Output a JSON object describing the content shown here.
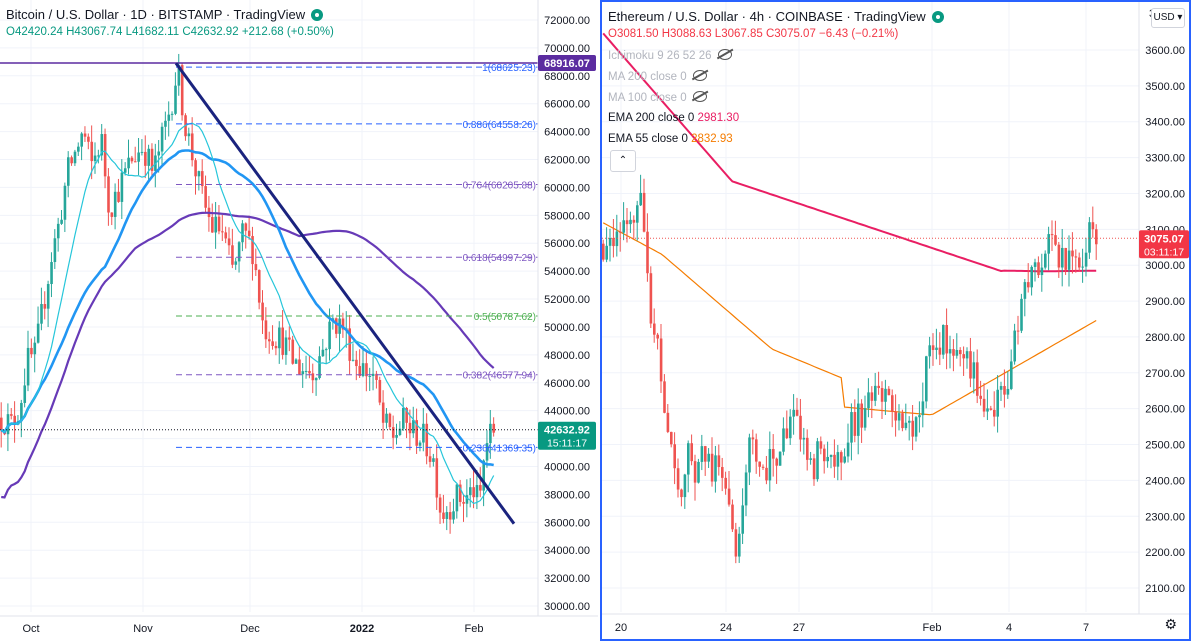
{
  "left": {
    "title": "Bitcoin / U.S. Dollar · 1D · BITSTAMP · TradingView",
    "ohlc": {
      "o": "O42420.24",
      "h": "H43067.74",
      "l": "L41682.11",
      "c": "C42632.92",
      "chg": "+212.68 (+0.50%)"
    },
    "price_axis": [
      "72000.00",
      "70000.00",
      "68000.00",
      "66000.00",
      "64000.00",
      "62000.00",
      "60000.00",
      "58000.00",
      "56000.00",
      "54000.00",
      "52000.00",
      "50000.00",
      "48000.00",
      "46000.00",
      "44000.00",
      "42000.00",
      "40000.00",
      "38000.00",
      "36000.00",
      "34000.00",
      "32000.00",
      "30000.00"
    ],
    "time_axis": [
      "Oct",
      "Nov",
      "Dec",
      "2022",
      "Feb"
    ],
    "last_price": "42632.92",
    "countdown": "15:11:17",
    "high_label": "68916.07",
    "fib_levels": [
      {
        "label": "1(68625.23)",
        "value": 68625.23,
        "color": "#2962ff"
      },
      {
        "label": "0.886(64558.26)",
        "value": 64558.26,
        "color": "#2962ff"
      },
      {
        "label": "0.764(60205.88)",
        "value": 60205.88,
        "color": "#7e57c2"
      },
      {
        "label": "0.618(54997.29)",
        "value": 54997.29,
        "color": "#7e57c2"
      },
      {
        "label": "0.5(50787.62)",
        "value": 50787.62,
        "color": "#4caf50"
      },
      {
        "label": "0.382(46577.94)",
        "value": 46577.94,
        "color": "#7e57c2"
      },
      {
        "label": "0.236(41369.35)",
        "value": 41369.35,
        "color": "#2962ff"
      }
    ]
  },
  "right": {
    "title": "Ethereum / U.S. Dollar · 4h · COINBASE · TradingView",
    "ohlc": {
      "o": "O3081.50",
      "h": "H3088.63",
      "l": "L3067.85",
      "c": "C3075.07",
      "chg": "−6.43 (−0.21%)"
    },
    "indicators": [
      {
        "label": "Ichimoku 9 26 52 26",
        "value": "",
        "enabled": false
      },
      {
        "label": "MA 200 close 0",
        "value": "",
        "enabled": false
      },
      {
        "label": "MA 100 close 0",
        "value": "",
        "enabled": false
      },
      {
        "label": "EMA 200 close 0",
        "value": "2981.30",
        "enabled": true,
        "color": "#e91e63"
      },
      {
        "label": "EMA 55 close 0",
        "value": "2832.93",
        "enabled": true,
        "color": "#f57c00"
      }
    ],
    "price_axis": [
      "3600.00",
      "3500.00",
      "3400.00",
      "3300.00",
      "3200.00",
      "3100.00",
      "3000.00",
      "2900.00",
      "2800.00",
      "2700.00",
      "2600.00",
      "2500.00",
      "2400.00",
      "2300.00",
      "2200.00",
      "2100.00"
    ],
    "time_axis": [
      "20",
      "24",
      "27",
      "Feb",
      "4",
      "7"
    ],
    "last_price": "3075.07",
    "countdown": "03:11:17",
    "currency": "USD",
    "axis_top_partial": "3"
  },
  "chart_data": [
    {
      "type": "candlestick",
      "title": "Bitcoin / U.S. Dollar · 1D · BITSTAMP",
      "ylim": [
        30000,
        72000
      ],
      "x_ticks": [
        "Oct",
        "Nov",
        "Dec",
        "2022",
        "Feb"
      ],
      "anchors": [
        [
          0,
          43500
        ],
        [
          10,
          43000
        ],
        [
          18,
          44200
        ],
        [
          26,
          47500
        ],
        [
          34,
          48000
        ],
        [
          42,
          51500
        ],
        [
          50,
          55000
        ],
        [
          58,
          57500
        ],
        [
          66,
          61000
        ],
        [
          74,
          62500
        ],
        [
          82,
          64000
        ],
        [
          90,
          61500
        ],
        [
          100,
          63500
        ],
        [
          108,
          58500
        ],
        [
          118,
          60000
        ],
        [
          130,
          62000
        ],
        [
          142,
          63000
        ],
        [
          152,
          61000
        ],
        [
          162,
          63800
        ],
        [
          170,
          66000
        ],
        [
          176,
          68600
        ],
        [
          184,
          64500
        ],
        [
          192,
          62000
        ],
        [
          200,
          59500
        ],
        [
          210,
          57200
        ],
        [
          220,
          57000
        ],
        [
          232,
          53800
        ],
        [
          242,
          56800
        ],
        [
          252,
          55500
        ],
        [
          262,
          50000
        ],
        [
          272,
          49500
        ],
        [
          282,
          49000
        ],
        [
          292,
          47500
        ],
        [
          302,
          47000
        ],
        [
          312,
          46800
        ],
        [
          322,
          48500
        ],
        [
          332,
          50500
        ],
        [
          342,
          50000
        ],
        [
          352,
          47800
        ],
        [
          362,
          47000
        ],
        [
          372,
          46500
        ],
        [
          382,
          43000
        ],
        [
          392,
          42200
        ],
        [
          402,
          43200
        ],
        [
          412,
          42500
        ],
        [
          422,
          42000
        ],
        [
          432,
          40500
        ],
        [
          440,
          36600
        ],
        [
          448,
          37200
        ],
        [
          456,
          37800
        ],
        [
          464,
          37600
        ],
        [
          472,
          38400
        ],
        [
          478,
          37200
        ],
        [
          484,
          41500
        ],
        [
          490,
          42400
        ],
        [
          494,
          42633
        ]
      ],
      "moving_averages": [
        {
          "name": "MA short",
          "color": "#26c6da"
        },
        {
          "name": "MA medium",
          "color": "#2196f3"
        },
        {
          "name": "MA long",
          "color": "#673ab7"
        }
      ],
      "trendline": {
        "from": [
          176,
          68900
        ],
        "to": [
          514,
          35900
        ],
        "color": "#1a237e"
      },
      "last": 42632.92
    },
    {
      "type": "candlestick",
      "title": "Ethereum / U.S. Dollar · 4h · COINBASE",
      "ylim": [
        2030,
        3650
      ],
      "x_ticks": [
        "20",
        "24",
        "27",
        "Feb",
        "4",
        "7"
      ],
      "anchors": [
        [
          0,
          3060
        ],
        [
          6,
          3070
        ],
        [
          14,
          3080
        ],
        [
          22,
          3090
        ],
        [
          30,
          3150
        ],
        [
          36,
          3200
        ],
        [
          42,
          3060
        ],
        [
          46,
          2850
        ],
        [
          52,
          2800
        ],
        [
          58,
          2700
        ],
        [
          64,
          2550
        ],
        [
          70,
          2420
        ],
        [
          76,
          2330
        ],
        [
          84,
          2480
        ],
        [
          92,
          2400
        ],
        [
          100,
          2500
        ],
        [
          108,
          2420
        ],
        [
          116,
          2470
        ],
        [
          124,
          2380
        ],
        [
          132,
          2200
        ],
        [
          138,
          2250
        ],
        [
          146,
          2500
        ],
        [
          154,
          2470
        ],
        [
          162,
          2440
        ],
        [
          172,
          2460
        ],
        [
          184,
          2520
        ],
        [
          192,
          2650
        ],
        [
          200,
          2480
        ],
        [
          208,
          2420
        ],
        [
          216,
          2490
        ],
        [
          224,
          2480
        ],
        [
          232,
          2440
        ],
        [
          240,
          2500
        ],
        [
          248,
          2560
        ],
        [
          256,
          2580
        ],
        [
          266,
          2610
        ],
        [
          278,
          2640
        ],
        [
          290,
          2580
        ],
        [
          302,
          2520
        ],
        [
          314,
          2570
        ],
        [
          322,
          2700
        ],
        [
          330,
          2760
        ],
        [
          340,
          2790
        ],
        [
          350,
          2770
        ],
        [
          360,
          2780
        ],
        [
          370,
          2690
        ],
        [
          378,
          2650
        ],
        [
          386,
          2610
        ],
        [
          394,
          2620
        ],
        [
          402,
          2640
        ],
        [
          412,
          2820
        ],
        [
          420,
          2900
        ],
        [
          428,
          2990
        ],
        [
          436,
          3020
        ],
        [
          444,
          3050
        ],
        [
          452,
          3040
        ],
        [
          460,
          3020
        ],
        [
          468,
          3030
        ],
        [
          476,
          3010
        ],
        [
          482,
          3060
        ],
        [
          488,
          3090
        ],
        [
          494,
          3075
        ]
      ],
      "ema200": {
        "name": "EMA 200 close 0",
        "color": "#e91e63",
        "value": 2981.3
      },
      "ema55": {
        "name": "EMA 55 close 0",
        "color": "#f57c00",
        "value": 2832.93
      },
      "last": 3075.07
    }
  ]
}
